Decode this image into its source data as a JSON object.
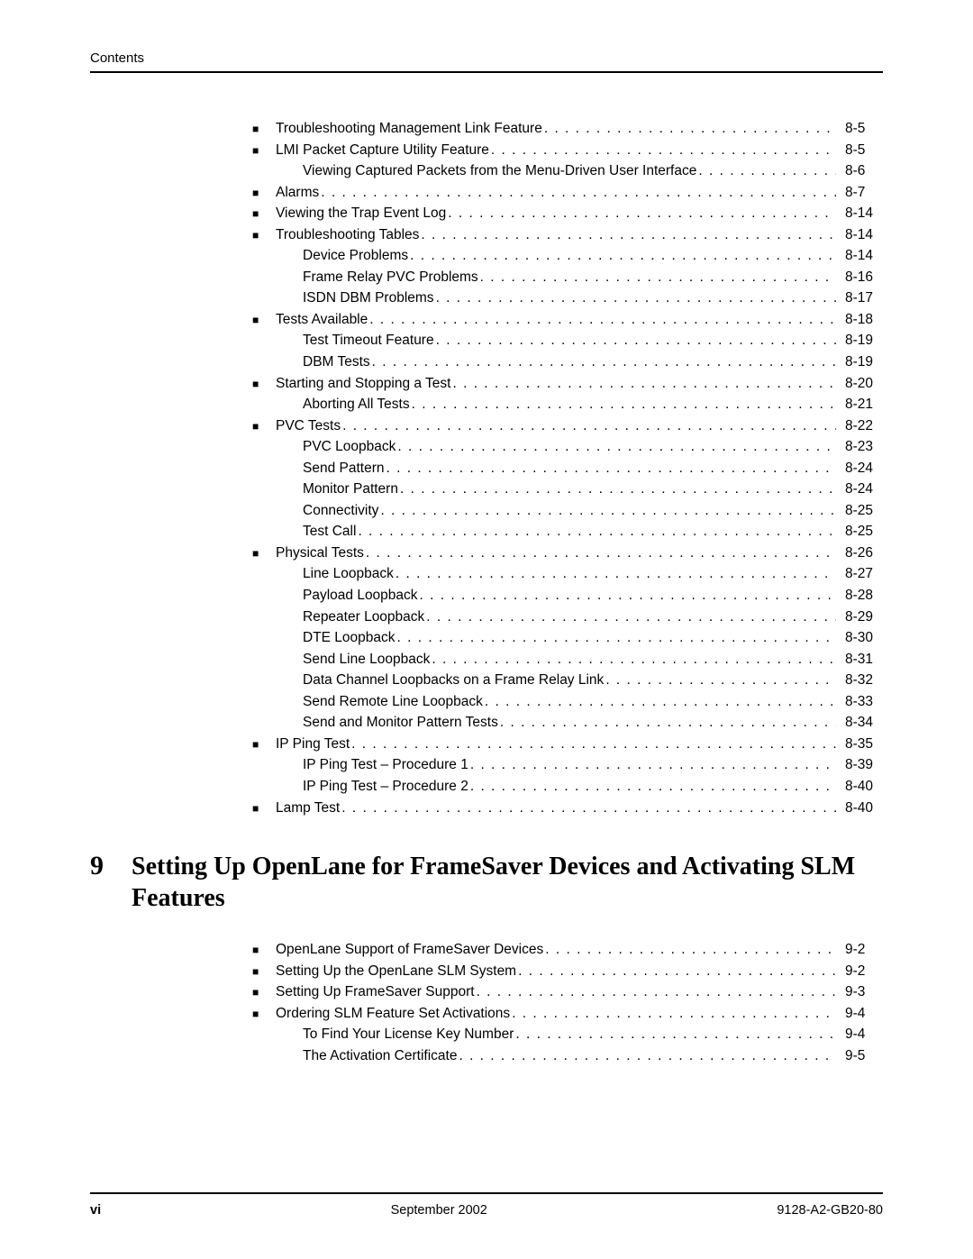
{
  "header": {
    "label": "Contents"
  },
  "section8_rows": [
    {
      "level": 0,
      "bullet": true,
      "title": "Troubleshooting Management Link Feature",
      "page": "8-5"
    },
    {
      "level": 0,
      "bullet": true,
      "title": "LMI Packet Capture Utility Feature",
      "page": "8-5"
    },
    {
      "level": 1,
      "bullet": false,
      "title": "Viewing Captured Packets from the Menu-Driven User Interface",
      "page": "8-6"
    },
    {
      "level": 0,
      "bullet": true,
      "title": "Alarms",
      "page": "8-7"
    },
    {
      "level": 0,
      "bullet": true,
      "title": "Viewing the Trap Event Log",
      "page": "8-14"
    },
    {
      "level": 0,
      "bullet": true,
      "title": "Troubleshooting Tables",
      "page": "8-14"
    },
    {
      "level": 1,
      "bullet": false,
      "title": "Device Problems",
      "page": "8-14"
    },
    {
      "level": 1,
      "bullet": false,
      "title": "Frame Relay PVC Problems",
      "page": "8-16"
    },
    {
      "level": 1,
      "bullet": false,
      "title": "ISDN DBM Problems",
      "page": "8-17"
    },
    {
      "level": 0,
      "bullet": true,
      "title": "Tests Available",
      "page": "8-18"
    },
    {
      "level": 1,
      "bullet": false,
      "title": "Test Timeout Feature",
      "page": "8-19"
    },
    {
      "level": 1,
      "bullet": false,
      "title": "DBM Tests",
      "page": "8-19"
    },
    {
      "level": 0,
      "bullet": true,
      "title": "Starting and Stopping a Test",
      "page": "8-20"
    },
    {
      "level": 1,
      "bullet": false,
      "title": "Aborting All Tests",
      "page": "8-21"
    },
    {
      "level": 0,
      "bullet": true,
      "title": "PVC Tests",
      "page": "8-22"
    },
    {
      "level": 1,
      "bullet": false,
      "title": "PVC Loopback",
      "page": "8-23"
    },
    {
      "level": 1,
      "bullet": false,
      "title": "Send Pattern",
      "page": "8-24"
    },
    {
      "level": 1,
      "bullet": false,
      "title": "Monitor Pattern",
      "page": "8-24"
    },
    {
      "level": 1,
      "bullet": false,
      "title": "Connectivity",
      "page": "8-25"
    },
    {
      "level": 1,
      "bullet": false,
      "title": "Test Call",
      "page": "8-25"
    },
    {
      "level": 0,
      "bullet": true,
      "title": "Physical Tests",
      "page": "8-26"
    },
    {
      "level": 1,
      "bullet": false,
      "title": "Line Loopback",
      "page": "8-27"
    },
    {
      "level": 1,
      "bullet": false,
      "title": "Payload Loopback",
      "page": "8-28"
    },
    {
      "level": 1,
      "bullet": false,
      "title": "Repeater Loopback",
      "page": "8-29"
    },
    {
      "level": 1,
      "bullet": false,
      "title": "DTE Loopback",
      "page": "8-30"
    },
    {
      "level": 1,
      "bullet": false,
      "title": "Send Line Loopback",
      "page": "8-31"
    },
    {
      "level": 1,
      "bullet": false,
      "title": "Data Channel Loopbacks on a Frame Relay Link",
      "page": "8-32"
    },
    {
      "level": 1,
      "bullet": false,
      "title": "Send Remote Line Loopback",
      "page": "8-33"
    },
    {
      "level": 1,
      "bullet": false,
      "title": "Send and Monitor Pattern Tests",
      "page": "8-34"
    },
    {
      "level": 0,
      "bullet": true,
      "title": "IP Ping Test",
      "page": "8-35"
    },
    {
      "level": 1,
      "bullet": false,
      "title": "IP Ping Test – Procedure 1",
      "page": "8-39"
    },
    {
      "level": 1,
      "bullet": false,
      "title": "IP Ping Test – Procedure 2",
      "page": "8-40"
    },
    {
      "level": 0,
      "bullet": true,
      "title": "Lamp Test",
      "page": "8-40"
    }
  ],
  "chapter9": {
    "number": "9",
    "title": "Setting Up OpenLane for FrameSaver Devices and Activating SLM Features"
  },
  "section9_rows": [
    {
      "level": 0,
      "bullet": true,
      "title": "OpenLane Support of FrameSaver Devices",
      "page": "9-2"
    },
    {
      "level": 0,
      "bullet": true,
      "title": "Setting Up the OpenLane SLM System",
      "page": "9-2"
    },
    {
      "level": 0,
      "bullet": true,
      "title": "Setting Up FrameSaver Support",
      "page": "9-3"
    },
    {
      "level": 0,
      "bullet": true,
      "title": "Ordering SLM Feature Set Activations",
      "page": "9-4"
    },
    {
      "level": 1,
      "bullet": false,
      "title": "To Find Your License Key Number",
      "page": "9-4"
    },
    {
      "level": 1,
      "bullet": false,
      "title": "The Activation Certificate",
      "page": "9-5"
    }
  ],
  "footer": {
    "left": "vi",
    "center": "September 2002",
    "right": "9128-A2-GB20-80"
  }
}
